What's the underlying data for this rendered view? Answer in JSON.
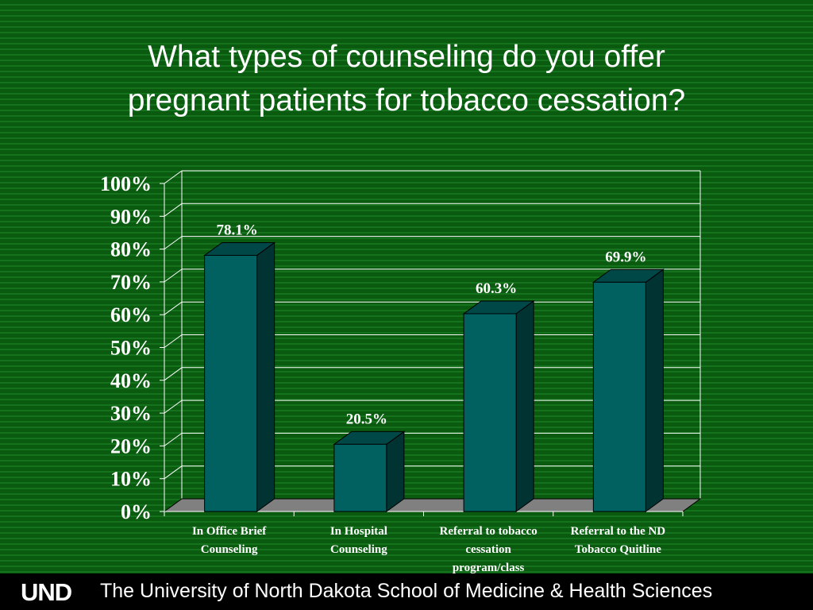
{
  "slide": {
    "title_line1": "What types of counseling do you offer",
    "title_line2": "pregnant patients for tobacco cessation?"
  },
  "footer": {
    "logo_text": "UND",
    "school_name": "The University of North Dakota School of Medicine & Health Sciences"
  },
  "colors": {
    "background": "#0b5d12",
    "bar_front": "#016060",
    "bar_side": "#013333",
    "bar_top": "#004848",
    "floor": "#808080"
  },
  "chart_data": {
    "type": "bar",
    "title": "What types of counseling do you offer pregnant patients for tobacco cessation?",
    "categories": [
      [
        "In Office Brief",
        "Counseling"
      ],
      [
        "In Hospital",
        "Counseling"
      ],
      [
        "Referral to tobacco",
        "cessation",
        "program/class"
      ],
      [
        "Referral to the ND",
        "Tobacco Quitline"
      ]
    ],
    "values": [
      78.1,
      20.5,
      60.3,
      69.9
    ],
    "data_labels": [
      "78.1%",
      "20.5%",
      "60.3%",
      "69.9%"
    ],
    "yticks": [
      "0%",
      "10%",
      "20%",
      "30%",
      "40%",
      "50%",
      "60%",
      "70%",
      "80%",
      "90%",
      "100%"
    ],
    "ylim": [
      0,
      100
    ],
    "grid": true,
    "legend": "none",
    "xlabel": "",
    "ylabel": ""
  }
}
